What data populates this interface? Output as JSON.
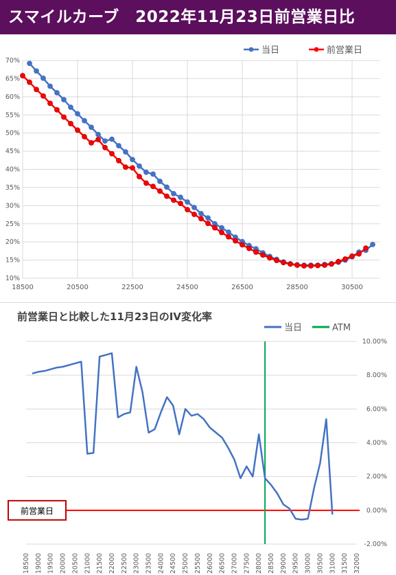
{
  "banner": {
    "title": "スマイルカーブ　2022年11月23日前営業日比"
  },
  "chart_data": [
    {
      "type": "line",
      "title": "",
      "legend": [
        "当日",
        "前営業日"
      ],
      "legend_position": "top-right",
      "xlim": [
        18500,
        31500
      ],
      "ylim": [
        10,
        70
      ],
      "x_ticks": [
        "18500",
        "20500",
        "22500",
        "24500",
        "26500",
        "28500",
        "30500"
      ],
      "y_ticks": [
        "10%",
        "15%",
        "20%",
        "25%",
        "30%",
        "35%",
        "40%",
        "45%",
        "50%",
        "55%",
        "60%",
        "65%",
        "70%"
      ],
      "grid": true,
      "series": [
        {
          "name": "当日",
          "color": "#4472c4",
          "x": [
            18750,
            19000,
            19250,
            19500,
            19750,
            20000,
            20250,
            20500,
            20750,
            21000,
            21250,
            21500,
            21750,
            22000,
            22250,
            22500,
            22750,
            23000,
            23250,
            23500,
            23750,
            24000,
            24250,
            24500,
            24750,
            25000,
            25250,
            25500,
            25750,
            26000,
            26250,
            26500,
            26750,
            27000,
            27250,
            27500,
            27750,
            28000,
            28250,
            28500,
            28750,
            29000,
            29250,
            29500,
            29750,
            30000,
            30250,
            30500,
            30750,
            31000,
            31250
          ],
          "values": [
            69.2,
            67.1,
            65.1,
            62.9,
            61.1,
            59.2,
            57.1,
            55.3,
            53.4,
            51.6,
            49.6,
            47.8,
            48.3,
            46.5,
            44.8,
            42.7,
            40.9,
            39.2,
            38.7,
            36.7,
            35.1,
            33.3,
            32.3,
            31.0,
            29.5,
            27.8,
            26.6,
            25.0,
            23.9,
            22.7,
            21.3,
            20.1,
            19.0,
            18.1,
            17.0,
            16.0,
            15.2,
            14.5,
            14.0,
            13.7,
            13.6,
            13.6,
            13.6,
            13.8,
            14.0,
            14.4,
            15.0,
            15.9,
            17.2,
            17.7,
            19.3
          ]
        },
        {
          "name": "前営業日",
          "color": "#ff0000",
          "x": [
            18500,
            18750,
            19000,
            19250,
            19500,
            19750,
            20000,
            20250,
            20500,
            20750,
            21000,
            21250,
            21500,
            21750,
            22000,
            22250,
            22500,
            22750,
            23000,
            23250,
            23500,
            23750,
            24000,
            24250,
            24500,
            24750,
            25000,
            25250,
            25500,
            25750,
            26000,
            26250,
            26500,
            26750,
            27000,
            27250,
            27500,
            27750,
            28000,
            28250,
            28500,
            28750,
            29000,
            29250,
            29500,
            29750,
            30000,
            30250,
            30500,
            30750,
            31000
          ],
          "values": [
            65.8,
            64.0,
            62.0,
            60.2,
            58.2,
            56.4,
            54.4,
            52.6,
            50.8,
            49.0,
            47.3,
            48.2,
            46.0,
            44.3,
            42.4,
            40.6,
            40.4,
            38.0,
            36.2,
            35.3,
            34.0,
            32.6,
            31.5,
            30.6,
            28.9,
            27.6,
            26.4,
            25.1,
            23.9,
            22.6,
            21.4,
            20.3,
            19.2,
            18.2,
            17.2,
            16.4,
            15.6,
            14.9,
            14.3,
            13.9,
            13.6,
            13.4,
            13.4,
            13.5,
            13.6,
            13.9,
            14.6,
            15.3,
            16.1,
            16.7,
            18.3
          ]
        }
      ]
    },
    {
      "type": "line",
      "title": "前営業日と比較した11月23日のIV変化率",
      "legend": [
        "当日",
        "ATM"
      ],
      "legend_position": "top-right",
      "xlim": [
        18500,
        32000
      ],
      "ylim": [
        -2,
        10
      ],
      "x_ticks": [
        "18500",
        "19000",
        "19500",
        "20000",
        "20500",
        "21000",
        "21500",
        "22000",
        "22500",
        "23000",
        "23500",
        "24000",
        "24500",
        "25000",
        "25500",
        "26000",
        "26500",
        "27000",
        "27500",
        "28000",
        "28500",
        "29000",
        "29500",
        "30000",
        "30500",
        "31000",
        "31500",
        "32000"
      ],
      "y_ticks": [
        "-2.00%",
        "0.00%",
        "2.00%",
        "4.00%",
        "6.00%",
        "8.00%",
        "10.00%"
      ],
      "grid": true,
      "atm_x": 28250,
      "baseline_label": "前営業日",
      "series": [
        {
          "name": "当日",
          "color": "#4472c4",
          "x": [
            18750,
            19000,
            19250,
            19500,
            19750,
            20000,
            20250,
            20500,
            20750,
            21000,
            21250,
            21500,
            21750,
            22000,
            22250,
            22500,
            22750,
            23000,
            23250,
            23500,
            23750,
            24000,
            24250,
            24500,
            24750,
            25000,
            25250,
            25500,
            25750,
            26000,
            26250,
            26500,
            26750,
            27000,
            27250,
            27500,
            27750,
            28000,
            28250,
            28500,
            28750,
            29000,
            29250,
            29500,
            29750,
            30000,
            30250,
            30500,
            30750,
            31000,
            31250
          ],
          "values": [
            8.1,
            8.2,
            8.25,
            8.35,
            8.45,
            8.5,
            8.6,
            8.7,
            8.8,
            3.35,
            3.4,
            9.1,
            9.2,
            9.3,
            5.5,
            5.7,
            5.8,
            8.5,
            7.0,
            4.6,
            4.8,
            5.8,
            6.7,
            6.2,
            4.5,
            6.0,
            5.6,
            5.7,
            5.4,
            4.9,
            4.6,
            4.3,
            3.7,
            3.0,
            1.9,
            2.6,
            2.0,
            4.5,
            1.9,
            1.5,
            1.0,
            0.35,
            0.1,
            -0.5,
            -0.55,
            -0.5,
            1.3,
            2.8,
            5.4,
            -0.25,
            null
          ]
        },
        {
          "name": "ATM",
          "color": "#00a651"
        },
        {
          "name": "前営業日",
          "color": "#ff0000"
        }
      ]
    }
  ]
}
